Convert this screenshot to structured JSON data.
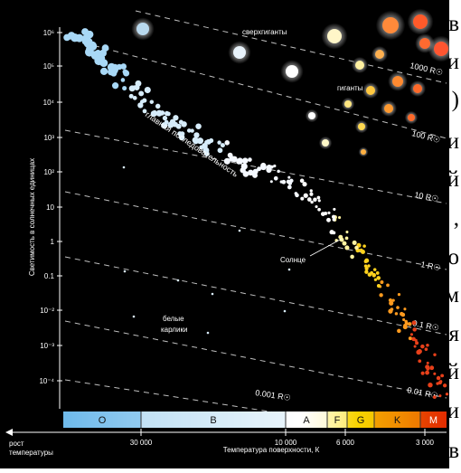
{
  "side_text": [
    "в",
    "и",
    ")",
    "и",
    "й",
    ",",
    "о",
    "м",
    "я",
    "й",
    "и",
    "в"
  ],
  "chart_data": {
    "type": "scatter",
    "ylabel": "Светимость в солнечных единицах",
    "xlabel": "Температура поверхности, К",
    "x_direction_label": [
      "рост",
      "температуры"
    ],
    "x_ticks": [
      "30 000",
      "10 000",
      "6 000",
      "3 000"
    ],
    "y_ticks": [
      "10⁶",
      "10⁵",
      "10⁴",
      "10³",
      "10²",
      "10",
      "1",
      "0.1",
      "10⁻²",
      "10⁻³",
      "10⁻⁴"
    ],
    "spectral_classes": [
      {
        "label": "O",
        "color": "#7fc3ee"
      },
      {
        "label": "B",
        "color": "#d8ecf8"
      },
      {
        "label": "A",
        "color": "#ffffff"
      },
      {
        "label": "F",
        "color": "#fff5a8"
      },
      {
        "label": "G",
        "color": "#f7d400"
      },
      {
        "label": "K",
        "color": "#f28c00"
      },
      {
        "label": "M",
        "color": "#e53000"
      }
    ],
    "radius_lines": [
      "1000 R☉",
      "100 R☉",
      "10 R☉",
      "1 R☉",
      "0.1 R☉",
      "0.01 R☉",
      "0.001 R☉"
    ],
    "annotations": {
      "supergiants": "сверхгиганты",
      "giants": "гиганты",
      "main_sequence": "главная последовательность",
      "sun": "Солнце",
      "white_dwarfs": [
        "белые",
        "карлики"
      ]
    },
    "colors": {
      "background": "#000000",
      "text": "#ffffff",
      "grid": "#cccccc"
    }
  }
}
